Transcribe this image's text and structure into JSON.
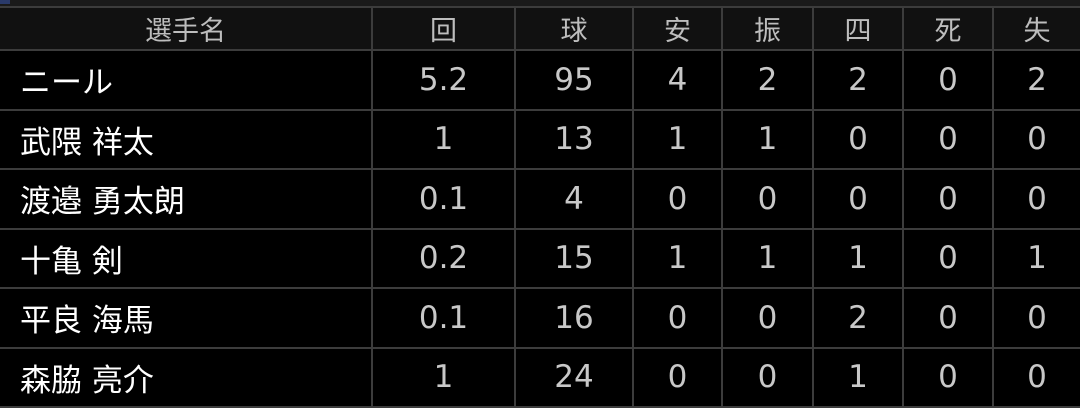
{
  "headers": [
    "選手名",
    "回",
    "球",
    "安",
    "振",
    "四",
    "死",
    "失"
  ],
  "rows": [
    {
      "name": "ニール",
      "values": [
        "5.2",
        "95",
        "4",
        "2",
        "2",
        "0",
        "2"
      ]
    },
    {
      "name": "武隈 祥太",
      "values": [
        "1",
        "13",
        "1",
        "1",
        "0",
        "0",
        "0"
      ]
    },
    {
      "name": "渡邉 勇太朗",
      "values": [
        "0.1",
        "4",
        "0",
        "0",
        "0",
        "0",
        "0"
      ]
    },
    {
      "name": "十亀 剣",
      "values": [
        "0.2",
        "15",
        "1",
        "1",
        "1",
        "0",
        "1"
      ]
    },
    {
      "name": "平良 海馬",
      "values": [
        "0.1",
        "16",
        "0",
        "0",
        "2",
        "0",
        "0"
      ]
    },
    {
      "name": "森脇 亮介",
      "values": [
        "1",
        "24",
        "0",
        "0",
        "1",
        "0",
        "0"
      ]
    }
  ]
}
